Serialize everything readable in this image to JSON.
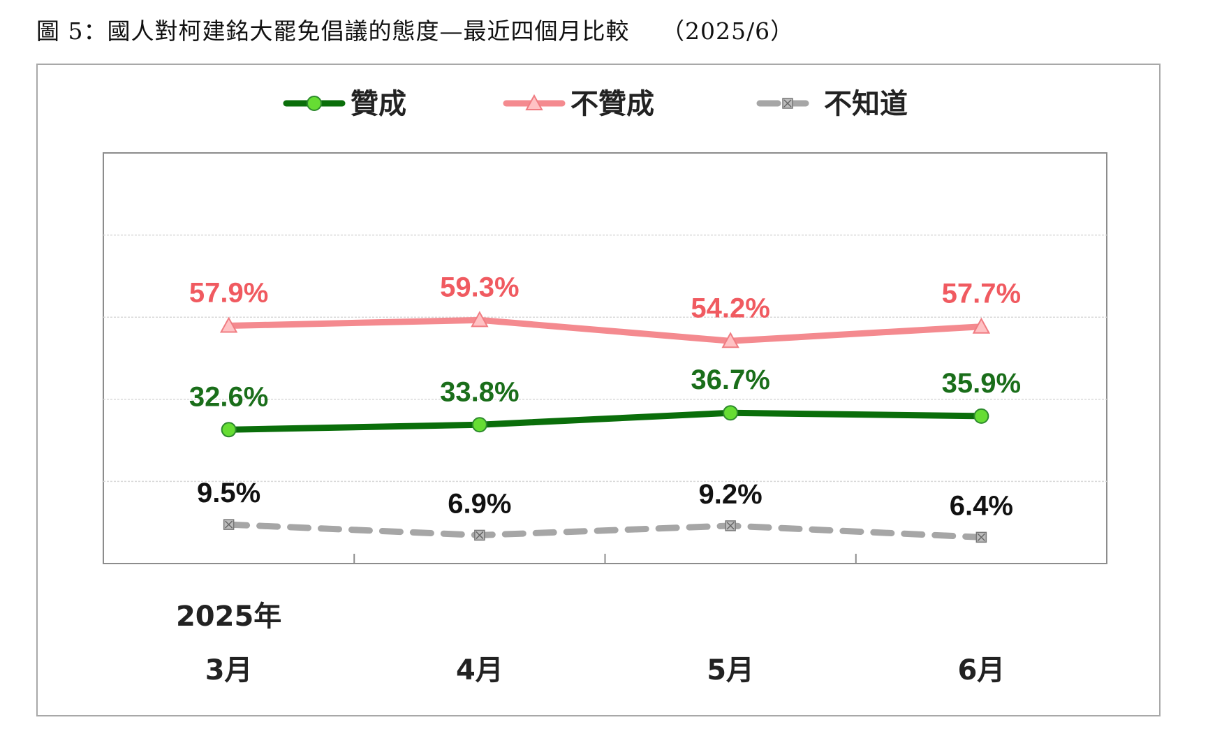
{
  "title": "圖 5：國人對柯建銘大罷免倡議的態度—最近四個月比較　 （2025/6）",
  "chart_data": {
    "type": "line",
    "year_label": "2025年",
    "categories": [
      "3月",
      "4月",
      "5月",
      "6月"
    ],
    "ylim": [
      0,
      100
    ],
    "grid": true,
    "legend_position": "top",
    "series": [
      {
        "name": "贊成",
        "values": [
          32.6,
          33.8,
          36.7,
          35.9
        ],
        "labels": [
          "32.6%",
          "33.8%",
          "36.7%",
          "35.9%"
        ],
        "color": "#0a6e0a",
        "marker": "circle",
        "marker_color": "#66dd33",
        "label_color": "#1a6e1a"
      },
      {
        "name": "不贊成",
        "values": [
          57.9,
          59.3,
          54.2,
          57.7
        ],
        "labels": [
          "57.9%",
          "59.3%",
          "54.2%",
          "57.7%"
        ],
        "color": "#f48a8f",
        "marker": "triangle",
        "marker_color": "#ffc2c4",
        "label_color": "#f05a60"
      },
      {
        "name": "不知道",
        "values": [
          9.5,
          6.9,
          9.2,
          6.4
        ],
        "labels": [
          "9.5%",
          "6.9%",
          "9.2%",
          "6.4%"
        ],
        "color": "#a6a6a6",
        "marker": "x-square",
        "marker_color": "#bcbcbc",
        "label_color": "#111111"
      }
    ]
  }
}
